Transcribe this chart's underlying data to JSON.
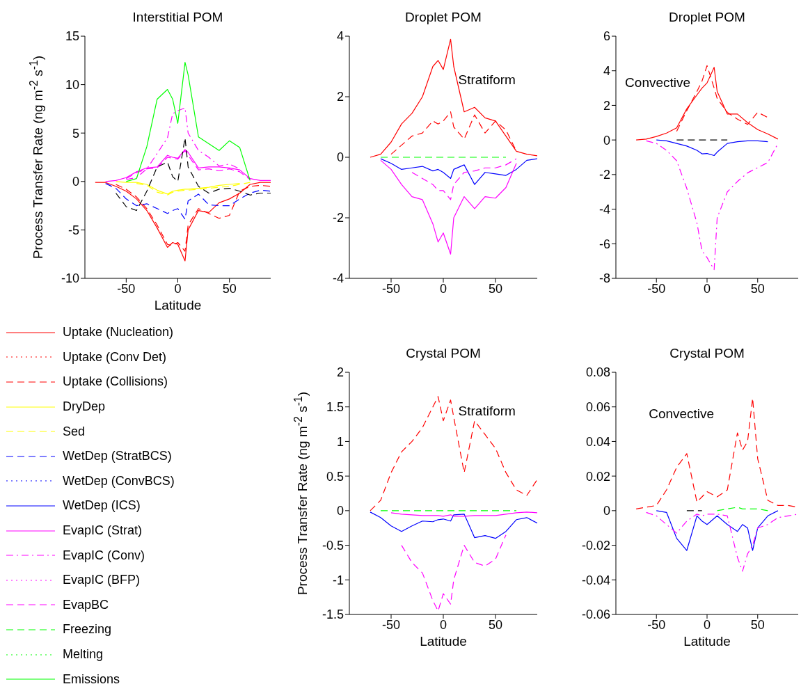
{
  "chart_data": [
    {
      "type": "line",
      "title": "Interstitial POM",
      "xlabel": "Latitude",
      "ylabel": "Process Transfer Rate (ng m$^{-2}$ s$^{-1}$)",
      "xlim": [
        -90,
        90
      ],
      "xticks": [
        -50,
        0,
        50
      ],
      "ylim": [
        -10,
        15
      ],
      "yticks": [
        -10,
        -5,
        0,
        5,
        10,
        15
      ],
      "legend": "bottom",
      "x": [
        -80,
        -70,
        -60,
        -50,
        -40,
        -30,
        -20,
        -10,
        -5,
        0,
        7,
        10,
        20,
        30,
        40,
        50,
        60,
        70,
        80,
        90
      ],
      "series": [
        {
          "name": "Uptake (Nucleation)",
          "color": "#ff0000",
          "line_style": "solid",
          "values": [
            -0.1,
            -0.1,
            -0.5,
            -1.0,
            -1.8,
            -3.0,
            -4.8,
            -6.8,
            -6.3,
            -6.5,
            -8.2,
            -5.0,
            -3.0,
            -3.2,
            -2.2,
            -1.8,
            -1.2,
            -0.3,
            -0.1,
            -0.1
          ]
        },
        {
          "name": "Uptake (Conv Det)",
          "color": "#ff0000",
          "line_style": "dotted",
          "values": [
            null,
            null,
            null,
            null,
            null,
            null,
            null,
            null,
            null,
            null,
            null,
            null,
            null,
            null,
            null,
            null,
            null,
            null,
            null,
            null
          ]
        },
        {
          "name": "Uptake (Collisions)",
          "color": "#ff0000",
          "line_style": "dashed",
          "values": [
            null,
            null,
            -0.3,
            -0.8,
            -1.6,
            -2.8,
            -4.5,
            -6.5,
            -6.6,
            -6.3,
            -7.2,
            -4.5,
            -2.8,
            -3.3,
            -3.8,
            -3.5,
            -1.0,
            -0.5,
            -0.4,
            -0.5
          ]
        },
        {
          "name": "DryDep",
          "color": "#ffff00",
          "line_style": "solid",
          "values": [
            null,
            null,
            0,
            -0.1,
            -0.1,
            -0.3,
            -0.9,
            -1.3,
            -1.0,
            -0.9,
            -0.8,
            -0.8,
            -0.7,
            -0.6,
            -0.4,
            -0.3,
            -0.2,
            null,
            null,
            null
          ]
        },
        {
          "name": "Sed",
          "color": "#ffff00",
          "line_style": "dashed",
          "values": [
            null,
            null,
            null,
            null,
            -0.2,
            -0.4,
            -1.1,
            -1.4,
            -1.1,
            -1.0,
            -0.9,
            -0.9,
            -0.8,
            -0.7,
            -0.6,
            -0.5,
            -0.3,
            -0.1,
            null,
            null
          ]
        },
        {
          "name": "WetDep (StratBCS)",
          "color": "#0000ff",
          "line_style": "dashed",
          "values": [
            null,
            -0.2,
            -0.7,
            -1.8,
            -2.5,
            -2.3,
            -2.8,
            -3.3,
            -3.0,
            -2.8,
            -3.9,
            -2.0,
            -1.3,
            -2.4,
            -2.5,
            -2.5,
            -1.8,
            -1.2,
            -0.9,
            -1.0
          ]
        },
        {
          "name": "WetDep (ConvBCS)",
          "color": "#0000ff",
          "line_style": "dotted",
          "values": [
            null,
            null,
            null,
            null,
            null,
            null,
            null,
            null,
            null,
            null,
            null,
            null,
            null,
            null,
            null,
            null,
            null,
            null,
            null,
            null
          ]
        },
        {
          "name": "WetDep (ICS)",
          "color": "#0000ff",
          "line_style": "solid",
          "values": [
            null,
            null,
            null,
            null,
            null,
            null,
            null,
            null,
            null,
            null,
            null,
            null,
            null,
            null,
            null,
            null,
            null,
            null,
            null,
            null
          ]
        },
        {
          "name": "EvapIC (Strat)",
          "color": "#ff00ff",
          "line_style": "solid",
          "values": [
            null,
            0,
            0.1,
            0.4,
            1.0,
            1.4,
            1.5,
            2.7,
            2.5,
            2.4,
            3.3,
            3.0,
            1.4,
            1.5,
            1.5,
            1.4,
            1.2,
            0.3,
            0.1,
            0.1
          ]
        },
        {
          "name": "EvapIC (Conv)",
          "color": "#ff00ff",
          "line_style": "dashdot",
          "values": [
            null,
            null,
            null,
            0.2,
            0.4,
            1.3,
            2.9,
            4.5,
            7,
            7.3,
            7.6,
            5,
            3.2,
            2.5,
            1.6,
            1.8,
            1.3,
            null,
            null,
            null
          ]
        },
        {
          "name": "EvapIC (BFP)",
          "color": "#ff00ff",
          "line_style": "dotted",
          "values": [
            null,
            null,
            null,
            null,
            null,
            null,
            null,
            null,
            null,
            null,
            null,
            null,
            null,
            null,
            null,
            null,
            null,
            null,
            null,
            null
          ]
        },
        {
          "name": "EvapBC",
          "color": "#ff00ff",
          "line_style": "dashed",
          "values": [
            null,
            null,
            null,
            0.3,
            0.9,
            1.3,
            1.4,
            2.5,
            2.4,
            2.3,
            3.2,
            2.7,
            1.2,
            1.3,
            1.1,
            1.3,
            1.0,
            0.2,
            null,
            null
          ]
        },
        {
          "name": "Freezing",
          "color": "#00ff00",
          "line_style": "dashed",
          "values": [
            null,
            null,
            null,
            null,
            null,
            null,
            null,
            null,
            null,
            null,
            null,
            null,
            null,
            null,
            null,
            null,
            null,
            null,
            null,
            null
          ]
        },
        {
          "name": "Melting",
          "color": "#00ff00",
          "line_style": "dotted",
          "values": [
            null,
            null,
            null,
            null,
            null,
            null,
            null,
            null,
            null,
            null,
            null,
            null,
            null,
            null,
            null,
            null,
            null,
            null,
            null,
            null
          ]
        },
        {
          "name": "Emissions",
          "color": "#00ff00",
          "line_style": "solid",
          "values": [
            null,
            null,
            null,
            0,
            0.3,
            3.6,
            8.5,
            9.5,
            8.5,
            6,
            12.3,
            11,
            4.6,
            3.9,
            3.2,
            4.2,
            3.5,
            0.1,
            null,
            null
          ]
        },
        {
          "color": "#000000",
          "line_style": "dashed",
          "values": [
            null,
            null,
            -1.2,
            -2.6,
            -3.0,
            -1.0,
            1.5,
            2.0,
            0.5,
            0,
            4.5,
            1.5,
            -0.5,
            -1.2,
            -0.8,
            -0.7,
            -1.0,
            -1.4,
            -1.2,
            -1.2
          ]
        }
      ]
    },
    {
      "type": "line",
      "title": "Droplet POM",
      "annotations": [
        "Stratiform"
      ],
      "xlim": [
        -90,
        90
      ],
      "xticks": [
        -50,
        0,
        50
      ],
      "ylim": [
        -4,
        4
      ],
      "yticks": [
        -4,
        -2,
        0,
        2,
        4
      ],
      "x": [
        -70,
        -60,
        -50,
        -40,
        -30,
        -20,
        -10,
        -5,
        0,
        7,
        10,
        20,
        30,
        40,
        50,
        60,
        70,
        80,
        90
      ],
      "series": [
        {
          "color": "#ff0000",
          "line_style": "solid",
          "values": [
            0,
            0.1,
            0.5,
            1.1,
            1.45,
            2.0,
            3.0,
            3.2,
            2.9,
            3.9,
            3.0,
            1.5,
            1.65,
            1.3,
            1.2,
            0.7,
            0.2,
            0.1,
            0.05
          ]
        },
        {
          "color": "#ff0000",
          "line_style": "dashed",
          "values": [
            null,
            null,
            0.1,
            0.4,
            0.7,
            0.8,
            1.2,
            1.1,
            1.2,
            1.5,
            1.0,
            0.6,
            1.4,
            0.8,
            1.2,
            0.9,
            0.2,
            null,
            null
          ]
        },
        {
          "color": "#0000ff",
          "line_style": "solid",
          "values": [
            null,
            -0.05,
            -0.2,
            -0.4,
            -0.35,
            -0.3,
            -0.45,
            -0.4,
            -0.5,
            -0.7,
            -0.4,
            -0.25,
            -0.9,
            -0.5,
            -0.55,
            -0.6,
            -0.4,
            -0.1,
            -0.05
          ]
        },
        {
          "color": "#ff00ff",
          "line_style": "solid",
          "values": [
            null,
            -0.1,
            -0.4,
            -0.9,
            -1.3,
            -1.4,
            -2.2,
            -2.8,
            -2.5,
            -3.2,
            -2.0,
            -1.3,
            -1.7,
            -1.3,
            -1.35,
            -1.0,
            -0.2,
            null,
            null
          ]
        },
        {
          "color": "#ff00ff",
          "line_style": "dashed",
          "values": [
            null,
            null,
            null,
            null,
            -0.5,
            -0.7,
            -0.9,
            -1.1,
            -1.1,
            -1.4,
            -0.9,
            -0.5,
            -0.45,
            -0.35,
            -0.35,
            -0.25,
            -0.05,
            null,
            null
          ]
        },
        {
          "color": "#00ff00",
          "line_style": "dashed",
          "values": [
            null,
            0,
            0,
            0,
            0,
            0,
            0,
            0,
            0,
            0,
            0,
            0,
            0,
            0,
            0,
            0,
            null,
            null,
            null
          ]
        }
      ]
    },
    {
      "type": "line",
      "title": "Droplet POM",
      "annotations": [
        "Convective"
      ],
      "xlim": [
        -90,
        90
      ],
      "xticks": [
        -50,
        0,
        50
      ],
      "ylim": [
        -8,
        6
      ],
      "yticks": [
        -8,
        -6,
        -4,
        -2,
        0,
        2,
        4,
        6
      ],
      "x": [
        -70,
        -60,
        -50,
        -40,
        -30,
        -20,
        -10,
        -5,
        0,
        7,
        10,
        20,
        30,
        40,
        50,
        60,
        70
      ],
      "series": [
        {
          "color": "#ff0000",
          "line_style": "solid",
          "values": [
            0,
            0.05,
            0.2,
            0.4,
            0.7,
            1.8,
            2.6,
            3.0,
            3.3,
            4.2,
            2.8,
            1.5,
            1.5,
            1.0,
            0.6,
            0.35,
            0.05
          ]
        },
        {
          "color": "#ff0000",
          "line_style": "dashed",
          "values": [
            null,
            null,
            null,
            null,
            0.5,
            1.7,
            2.8,
            3.4,
            4.3,
            3.0,
            2.4,
            1.6,
            1.2,
            0.9,
            1.6,
            1.3,
            null
          ]
        },
        {
          "color": "#0000ff",
          "line_style": "solid",
          "values": [
            null,
            null,
            0,
            -0.05,
            -0.2,
            -0.35,
            -0.6,
            -0.8,
            -0.78,
            -0.9,
            -0.7,
            -0.2,
            -0.1,
            -0.05,
            -0.05,
            -0.1,
            null
          ]
        },
        {
          "color": "#ff00ff",
          "line_style": "dashdot",
          "values": [
            null,
            -0.05,
            -0.2,
            -0.6,
            -1.2,
            -2.8,
            -4.8,
            -6.4,
            -6.8,
            -7.5,
            -4.5,
            -3.0,
            -2.4,
            -1.9,
            -1.6,
            -1.3,
            -0.2
          ]
        },
        {
          "color": "#000000",
          "line_style": "dashed",
          "values": [
            null,
            null,
            null,
            null,
            0,
            0,
            0,
            0,
            0,
            0,
            0,
            0,
            null,
            null,
            null,
            null,
            null
          ]
        }
      ]
    },
    {
      "type": "line",
      "title": "Crystal POM",
      "annotations": [
        "Stratiform"
      ],
      "xlabel": "Latitude",
      "ylabel": "Process Transfer Rate (ng m$^{-2}$ s$^{-1}$)",
      "xlim": [
        -90,
        90
      ],
      "xticks": [
        -50,
        0,
        50
      ],
      "ylim": [
        -1.5,
        2
      ],
      "yticks": [
        -1.5,
        -1,
        -0.5,
        0,
        0.5,
        1,
        1.5,
        2
      ],
      "x": [
        -70,
        -60,
        -50,
        -40,
        -30,
        -20,
        -10,
        -5,
        0,
        7,
        10,
        20,
        30,
        40,
        50,
        60,
        70,
        80,
        90
      ],
      "series": [
        {
          "color": "#ff0000",
          "line_style": "dashed",
          "values": [
            0,
            0.15,
            0.55,
            0.85,
            1.0,
            1.2,
            1.5,
            1.65,
            1.3,
            1.6,
            1.35,
            0.55,
            1.3,
            1.1,
            0.9,
            0.55,
            0.3,
            0.22,
            0.45
          ]
        },
        {
          "color": "#0000ff",
          "line_style": "solid",
          "values": [
            -0.02,
            -0.1,
            -0.22,
            -0.3,
            -0.22,
            -0.15,
            -0.16,
            -0.13,
            -0.12,
            -0.15,
            -0.06,
            -0.05,
            -0.39,
            -0.36,
            -0.4,
            -0.3,
            -0.13,
            -0.1,
            -0.18
          ]
        },
        {
          "color": "#ff00ff",
          "line_style": "solid",
          "values": [
            null,
            null,
            -0.03,
            -0.05,
            -0.06,
            -0.07,
            -0.07,
            -0.07,
            -0.08,
            -0.06,
            -0.08,
            -0.08,
            -0.07,
            -0.07,
            -0.07,
            -0.05,
            -0.03,
            -0.02,
            -0.03
          ]
        },
        {
          "color": "#ff00ff",
          "line_style": "dashed",
          "values": [
            null,
            null,
            null,
            -0.5,
            -0.75,
            -0.9,
            -1.3,
            -1.45,
            -1.2,
            -1.35,
            -1.0,
            -0.5,
            -0.75,
            -0.8,
            -0.7,
            -0.35,
            null,
            null,
            null
          ]
        },
        {
          "color": "#00ff00",
          "line_style": "dashed",
          "values": [
            null,
            0,
            0,
            0,
            0,
            0,
            0,
            0,
            0,
            0,
            0,
            0,
            0,
            0,
            0,
            0,
            0,
            null,
            null
          ]
        }
      ]
    },
    {
      "type": "line",
      "title": "Crystal POM",
      "annotations": [
        "Convective"
      ],
      "xlabel": "Latitude",
      "xlim": [
        -90,
        90
      ],
      "xticks": [
        -50,
        0,
        50
      ],
      "ylim": [
        -0.06,
        0.08
      ],
      "yticks": [
        -0.06,
        -0.04,
        -0.02,
        0,
        0.02,
        0.04,
        0.06,
        0.08
      ],
      "x": [
        -70,
        -60,
        -50,
        -40,
        -30,
        -20,
        -10,
        -5,
        0,
        10,
        20,
        30,
        35,
        40,
        45,
        50,
        60,
        70,
        80,
        90
      ],
      "series": [
        {
          "color": "#ff0000",
          "line_style": "dashed",
          "values": [
            0.001,
            0.002,
            0.003,
            0.012,
            0.025,
            0.033,
            0.005,
            0.008,
            0.011,
            0.008,
            0.012,
            0.045,
            0.035,
            0.04,
            0.065,
            0.03,
            0.006,
            0.003,
            0.003,
            0.002
          ]
        },
        {
          "color": "#0000ff",
          "line_style": "solid",
          "values": [
            null,
            null,
            0,
            -0.001,
            -0.016,
            -0.023,
            -0.003,
            -0.006,
            -0.008,
            -0.003,
            -0.008,
            -0.012,
            -0.008,
            -0.01,
            -0.023,
            -0.01,
            -0.003,
            0,
            null,
            null
          ]
        },
        {
          "color": "#ff00ff",
          "line_style": "dashdot",
          "values": [
            null,
            -0.001,
            -0.003,
            -0.008,
            -0.013,
            -0.006,
            -0.002,
            -0.003,
            -0.002,
            -0.002,
            -0.003,
            -0.027,
            -0.035,
            -0.025,
            -0.02,
            -0.01,
            -0.008,
            -0.004,
            -0.003,
            -0.002
          ]
        },
        {
          "color": "#00ff00",
          "line_style": "dashed",
          "values": [
            null,
            null,
            null,
            null,
            null,
            null,
            null,
            null,
            null,
            0,
            0.001,
            0.002,
            0.001,
            0.001,
            0.001,
            0.001,
            0,
            null,
            null,
            null
          ]
        },
        {
          "color": "#000000",
          "line_style": "dashed",
          "values": [
            null,
            null,
            null,
            null,
            null,
            0,
            0,
            0,
            null,
            null,
            null,
            null,
            null,
            null,
            null,
            null,
            null,
            null,
            null,
            null
          ]
        }
      ]
    }
  ]
}
